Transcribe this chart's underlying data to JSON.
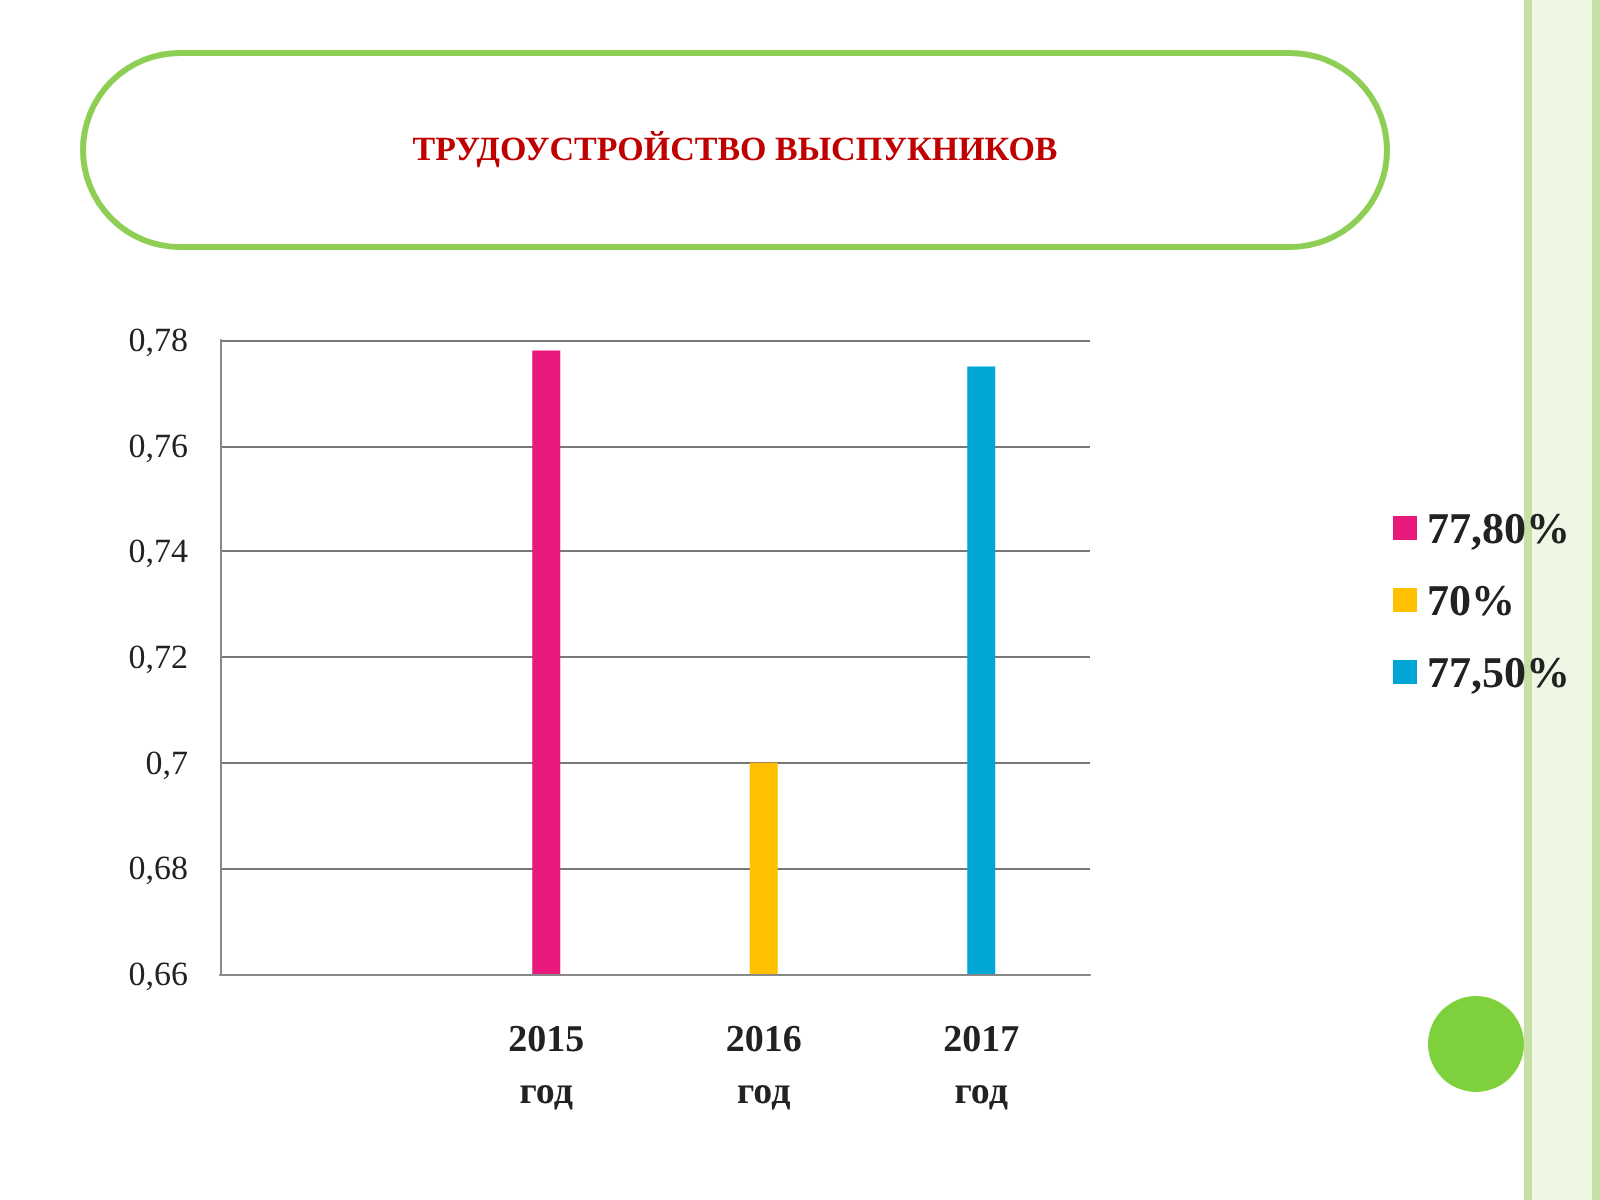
{
  "chart_data": {
    "type": "bar",
    "title": "ТРУДОУСТРОЙСТВО ВЫСПУКНИКОВ",
    "categories": [
      null,
      "2015\nгод",
      "2016\nгод",
      "2017\nгод"
    ],
    "series": [
      {
        "name": "77,80%",
        "color": "#e8197a",
        "values": [
          null,
          0.778,
          null,
          null
        ]
      },
      {
        "name": "70%",
        "color": "#ffc000",
        "values": [
          null,
          null,
          0.7,
          null
        ]
      },
      {
        "name": "77,50%",
        "color": "#00a6d6",
        "values": [
          null,
          null,
          null,
          0.775
        ]
      }
    ],
    "ylim": [
      0.66,
      0.78
    ],
    "yticks": [
      {
        "value": 0.66,
        "label": "0,66"
      },
      {
        "value": 0.68,
        "label": "0,68"
      },
      {
        "value": 0.7,
        "label": "0,7"
      },
      {
        "value": 0.72,
        "label": "0,72"
      },
      {
        "value": 0.74,
        "label": "0,74"
      },
      {
        "value": 0.76,
        "label": "0,76"
      },
      {
        "value": 0.78,
        "label": "0,78"
      }
    ],
    "grid": "y",
    "legend": "right"
  }
}
